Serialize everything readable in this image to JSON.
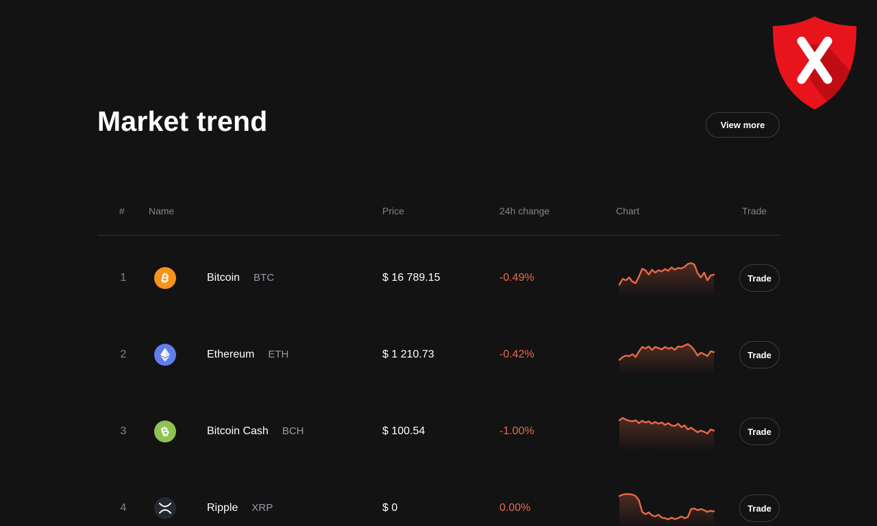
{
  "header": {
    "title": "Market trend",
    "view_more_label": "View more"
  },
  "table": {
    "columns": [
      "#",
      "Name",
      "Price",
      "24h change",
      "Chart",
      "Trade"
    ],
    "rows": [
      {
        "rank": "1",
        "name": "Bitcoin",
        "symbol": "BTC",
        "price": "$ 16 789.15",
        "change": "-0.49%",
        "trade_label": "Trade",
        "icon": "bitcoin-icon",
        "icon_color": "#f7931a",
        "sparkline": [
          0.2,
          0.4,
          0.35,
          0.45,
          0.3,
          0.25,
          0.48,
          0.75,
          0.7,
          0.55,
          0.72,
          0.62,
          0.7,
          0.66,
          0.74,
          0.68,
          0.8,
          0.72,
          0.78,
          0.76,
          0.82,
          0.92,
          0.95,
          0.9,
          0.6,
          0.45,
          0.62,
          0.35,
          0.52,
          0.55
        ]
      },
      {
        "rank": "2",
        "name": "Ethereum",
        "symbol": "ETH",
        "price": "$ 1 210.73",
        "change": "-0.42%",
        "trade_label": "Trade",
        "icon": "ethereum-icon",
        "icon_color": "#627eea",
        "sparkline": [
          0.25,
          0.35,
          0.4,
          0.38,
          0.45,
          0.35,
          0.55,
          0.7,
          0.65,
          0.72,
          0.6,
          0.7,
          0.66,
          0.62,
          0.7,
          0.64,
          0.68,
          0.6,
          0.72,
          0.7,
          0.75,
          0.8,
          0.72,
          0.58,
          0.4,
          0.5,
          0.45,
          0.38,
          0.55,
          0.52
        ]
      },
      {
        "rank": "3",
        "name": "Bitcoin Cash",
        "symbol": "BCH",
        "price": "$ 100.54",
        "change": "-1.00%",
        "trade_label": "Trade",
        "icon": "bitcoin-cash-icon",
        "icon_color": "#8dc351",
        "sparkline": [
          0.82,
          0.9,
          0.84,
          0.8,
          0.78,
          0.82,
          0.72,
          0.8,
          0.74,
          0.78,
          0.7,
          0.76,
          0.7,
          0.74,
          0.66,
          0.72,
          0.64,
          0.62,
          0.7,
          0.58,
          0.64,
          0.5,
          0.56,
          0.48,
          0.4,
          0.46,
          0.42,
          0.36,
          0.5,
          0.46
        ]
      },
      {
        "rank": "4",
        "name": "Ripple",
        "symbol": "XRP",
        "price": "$ 0",
        "change": "0.00%",
        "trade_label": "Trade",
        "icon": "ripple-icon",
        "icon_color": "#23292f",
        "sparkline": [
          0.85,
          0.9,
          0.92,
          0.92,
          0.9,
          0.85,
          0.7,
          0.3,
          0.22,
          0.28,
          0.18,
          0.14,
          0.2,
          0.1,
          0.08,
          0.04,
          0.1,
          0.05,
          0.08,
          0.14,
          0.08,
          0.12,
          0.4,
          0.42,
          0.36,
          0.4,
          0.36,
          0.3,
          0.34,
          0.32
        ]
      }
    ]
  },
  "colors": {
    "background": "#131314",
    "accent_negative": "#ea6a47",
    "shield_red": "#e8141c"
  },
  "overlay": {
    "icon": "security-shield-x-icon"
  }
}
